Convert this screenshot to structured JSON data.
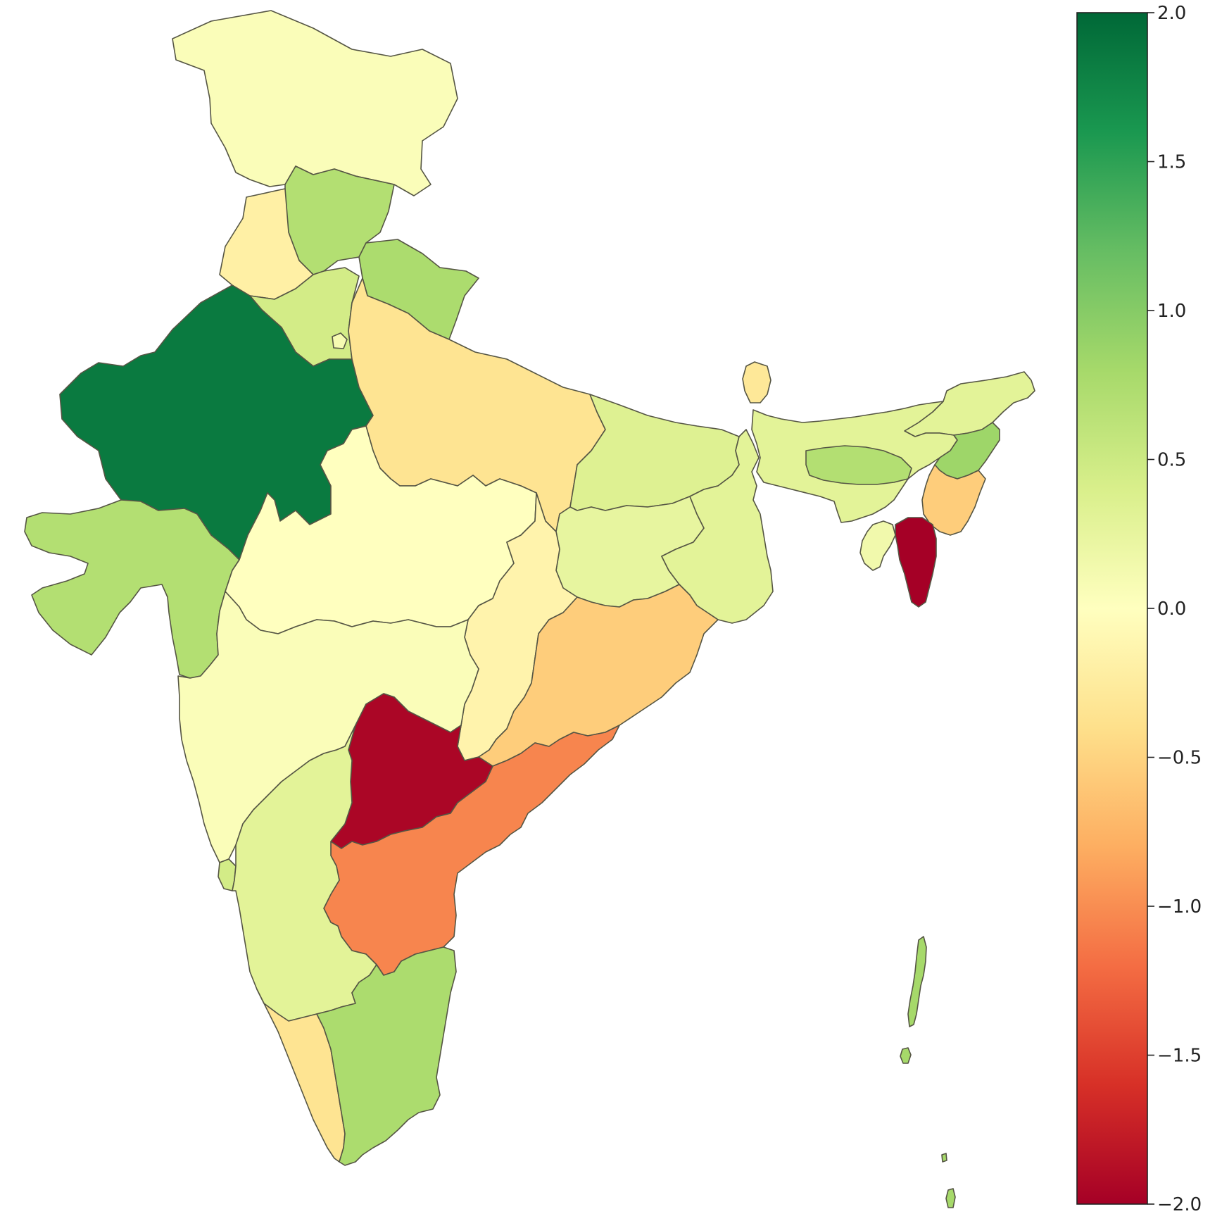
{
  "colormap": {
    "name": "RdYlGn",
    "stops": [
      "#a50026",
      "#d73027",
      "#f46d43",
      "#fdae61",
      "#fee08b",
      "#ffffbf",
      "#d9ef8b",
      "#a6d96a",
      "#66bd63",
      "#1a9850",
      "#006837"
    ],
    "min": -2.0,
    "max": 2.0
  },
  "colorbar": {
    "ticks": [
      {
        "value": 2.0,
        "label": "2.0"
      },
      {
        "value": 1.5,
        "label": "1.5"
      },
      {
        "value": 1.0,
        "label": "1.0"
      },
      {
        "value": 0.5,
        "label": "0.5"
      },
      {
        "value": 0.0,
        "label": "0.0"
      },
      {
        "value": -0.5,
        "label": "−0.5"
      },
      {
        "value": -1.0,
        "label": "−1.0"
      },
      {
        "value": -1.5,
        "label": "−1.5"
      },
      {
        "value": -2.0,
        "label": "−2.0"
      }
    ]
  },
  "chart_data": {
    "type": "heatmap",
    "ylim": [
      -2.0,
      2.0
    ],
    "regions": [
      {
        "id": "jammu-kashmir",
        "value": 0.05
      },
      {
        "id": "himachal-pradesh",
        "value": 0.7
      },
      {
        "id": "punjab",
        "value": -0.2
      },
      {
        "id": "uttarakhand",
        "value": 0.75
      },
      {
        "id": "haryana",
        "value": 0.45
      },
      {
        "id": "delhi",
        "value": 0.1
      },
      {
        "id": "rajasthan",
        "value": 1.85
      },
      {
        "id": "uttar-pradesh",
        "value": -0.35
      },
      {
        "id": "gujarat",
        "value": 0.7
      },
      {
        "id": "madhya-pradesh",
        "value": 0.0
      },
      {
        "id": "bihar",
        "value": 0.35
      },
      {
        "id": "jharkhand",
        "value": 0.25
      },
      {
        "id": "west-bengal",
        "value": 0.3
      },
      {
        "id": "chhattisgarh",
        "value": -0.15
      },
      {
        "id": "odisha",
        "value": -0.55
      },
      {
        "id": "maharashtra",
        "value": 0.05
      },
      {
        "id": "telangana",
        "value": -1.95
      },
      {
        "id": "andhra-pradesh",
        "value": -1.05
      },
      {
        "id": "karnataka",
        "value": 0.3
      },
      {
        "id": "goa",
        "value": 0.45
      },
      {
        "id": "kerala",
        "value": -0.35
      },
      {
        "id": "tamil-nadu",
        "value": 0.75
      },
      {
        "id": "sikkim",
        "value": -0.3
      },
      {
        "id": "arunachal-pradesh",
        "value": 0.3
      },
      {
        "id": "assam",
        "value": 0.3
      },
      {
        "id": "meghalaya",
        "value": 0.7
      },
      {
        "id": "nagaland",
        "value": 0.85
      },
      {
        "id": "manipur",
        "value": -0.55
      },
      {
        "id": "tripura",
        "value": 0.15
      },
      {
        "id": "mizoram",
        "value": -2.0
      },
      {
        "id": "andaman-nicobar",
        "value": 0.8
      }
    ]
  }
}
